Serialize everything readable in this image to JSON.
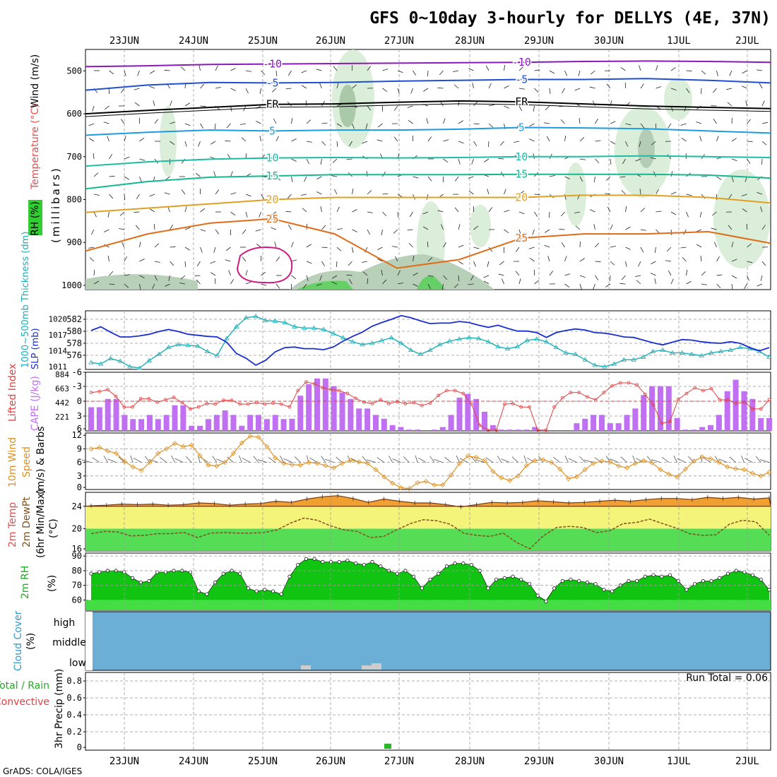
{
  "title": "GFS 0~10day 3-hourly for DELLYS (4E, 37N)",
  "footer": "GrADS: COLA/IGES",
  "dates": [
    "23JUN",
    "24JUN",
    "25JUN",
    "26JUN",
    "27JUN",
    "28JUN",
    "29JUN",
    "30JUN",
    "1JUL",
    "2JUL"
  ],
  "panels": {
    "upper": {
      "ylabel_wind": "Wind (m/s)",
      "ylabel_temp": "Temperature (°C)",
      "ylabel_rh": "RH (%)",
      "ylabel_pressure": "(millibars)",
      "ticks": [
        "500",
        "600",
        "700",
        "800",
        "900",
        "1000"
      ]
    },
    "thickness": {
      "ylabel_left": "1000~500mb Thickness (dm)",
      "ylabel_right": "SLP (mb)",
      "left_ticks": [
        "582",
        "580",
        "578",
        "576"
      ],
      "right_ticks": [
        "1020",
        "1017",
        "1014",
        "1011"
      ]
    },
    "li": {
      "ylabel_left": "Lifted Index",
      "ylabel_right": "CAPE (J/kg)",
      "left_ticks": [
        "-6",
        "-3",
        "0",
        "3",
        "6"
      ],
      "right_ticks": [
        "884",
        "663",
        "442",
        "221"
      ]
    },
    "wind10": {
      "ylabel1": "10m Wind",
      "ylabel2": "Speed",
      "ylabel3": "(m/s) & Barbs",
      "ticks": [
        "12",
        "9",
        "6",
        "3",
        "0"
      ]
    },
    "temp2m": {
      "ylabel1": "2m Temp",
      "ylabel2": "2m DewPt",
      "ylabel3": "(6hr Min/Max)",
      "ylabel4": "(°C)",
      "ticks": [
        "24",
        "20",
        "16"
      ]
    },
    "rh2m": {
      "ylabel1": "2m RH",
      "ylabel2": "(%)",
      "ticks": [
        "90",
        "80",
        "70",
        "60"
      ]
    },
    "cloud": {
      "ylabel1": "Cloud Cover",
      "ylabel2": "(%)",
      "levels": [
        "high",
        "middle",
        "low"
      ]
    },
    "precip": {
      "ylabel1": "Total / Rain",
      "ylabel2": "Convective",
      "ylabel3": "3hr Precip (mm)",
      "ticks": [
        "0.8",
        "0.6",
        "0.4",
        "0.2",
        "0"
      ],
      "run_total": "Run Total = 0.06"
    }
  },
  "chart_data": [
    {
      "type": "line",
      "name": "pressure-level cross section",
      "y_axis": "pressure (mb)",
      "ylim": [
        1000,
        450
      ],
      "series": [
        {
          "name": "-10",
          "pressure": [
            490,
            488,
            485,
            484,
            483,
            482,
            481,
            480,
            478,
            477,
            478,
            480
          ]
        },
        {
          "name": "-5",
          "pressure": [
            545,
            533,
            527,
            528,
            527,
            524,
            522,
            520,
            520,
            518,
            522,
            528
          ]
        },
        {
          "name": "FR",
          "pressure": [
            600,
            592,
            585,
            578,
            577,
            573,
            570,
            572,
            577,
            582,
            585,
            588
          ]
        },
        {
          "name": "5",
          "pressure": [
            650,
            643,
            638,
            640,
            638,
            638,
            636,
            632,
            633,
            635,
            640,
            645
          ]
        },
        {
          "name": "10",
          "pressure": [
            722,
            712,
            706,
            703,
            702,
            703,
            702,
            700,
            700,
            698,
            700,
            702
          ]
        },
        {
          "name": "15",
          "pressure": [
            775,
            758,
            748,
            745,
            742,
            742,
            742,
            741,
            741,
            741,
            743,
            750
          ]
        },
        {
          "name": "20",
          "pressure": [
            830,
            820,
            810,
            800,
            795,
            795,
            795,
            795,
            790,
            790,
            795,
            808
          ]
        },
        {
          "name": "25",
          "pressure": [
            920,
            880,
            855,
            845,
            880,
            960,
            940,
            890,
            880,
            880,
            875,
            902
          ]
        }
      ]
    },
    {
      "type": "line",
      "series": [
        {
          "name": "1000~500mb Thickness",
          "unit": "dm",
          "values": [
            576.0,
            575.8,
            576.6,
            576.2,
            575.4,
            575.2,
            576.3,
            577.2,
            578.2,
            578.6,
            578.5,
            578.4,
            577.6,
            577.0,
            579.5,
            581.2,
            582.5,
            582.7,
            582.1,
            582.0,
            581.8,
            581.2,
            581.0,
            581.0,
            580.8,
            580.2,
            579.6,
            579.0,
            578.6,
            578.8,
            579.2,
            579.6,
            578.8,
            577.8,
            577.2,
            577.8,
            578.6,
            579.1,
            579.4,
            579.6,
            579.5,
            579.0,
            578.3,
            578.0,
            578.3,
            579.2,
            579.4,
            579.0,
            578.2,
            577.4,
            577.2,
            576.4,
            575.6,
            575.4,
            575.8,
            576.4,
            576.4,
            576.8,
            577.6,
            577.8,
            577.4,
            577.4,
            577.2,
            577.0,
            577.4,
            577.6,
            577.8,
            578.2,
            578.0,
            577.6,
            576.8
          ]
        },
        {
          "name": "SLP",
          "unit": "mb",
          "values": [
            1017.8,
            1018.5,
            1017.5,
            1016.6,
            1016.6,
            1016.8,
            1017.1,
            1017.6,
            1018.0,
            1017.6,
            1017.1,
            1016.9,
            1016.7,
            1016.6,
            1015.6,
            1013.5,
            1012.6,
            1011.3,
            1012.2,
            1013.8,
            1014.6,
            1014.7,
            1014.4,
            1014.4,
            1014.2,
            1014.7,
            1015.8,
            1016.7,
            1017.5,
            1018.6,
            1019.3,
            1019.9,
            1020.6,
            1020.2,
            1019.6,
            1019.1,
            1019.2,
            1019.2,
            1019.5,
            1019.3,
            1018.8,
            1018.4,
            1018.8,
            1018.2,
            1017.7,
            1017.7,
            1017.4,
            1016.5,
            1017.4,
            1017.8,
            1018.1,
            1017.9,
            1017.4,
            1017.3,
            1017.0,
            1016.6,
            1016.5,
            1016.0,
            1015.5,
            1015.1,
            1015.6,
            1016.1,
            1016.0,
            1015.7,
            1015.5,
            1015.4,
            1015.7,
            1015.4,
            1014.6,
            1014.0,
            1014.6
          ]
        }
      ]
    },
    {
      "type": "bar",
      "series": [
        {
          "name": "CAPE",
          "unit": "J/kg",
          "values": [
            370,
            370,
            500,
            500,
            250,
            185,
            185,
            250,
            185,
            250,
            400,
            400,
            80,
            80,
            185,
            250,
            320,
            250,
            80,
            250,
            250,
            185,
            250,
            185,
            190,
            550,
            730,
            820,
            820,
            700,
            600,
            500,
            350,
            350,
            250,
            190,
            90,
            60,
            20,
            20,
            0,
            20,
            60,
            250,
            520,
            580,
            500,
            300,
            90,
            20,
            20,
            20,
            20,
            60,
            20,
            0,
            0,
            0,
            120,
            190,
            250,
            250,
            120,
            120,
            250,
            350,
            560,
            700,
            700,
            700,
            200,
            20,
            20,
            60,
            90,
            250,
            620,
            800,
            620,
            500,
            200,
            200
          ]
        },
        {
          "name": "Lifted Index",
          "unit": "",
          "values": [
            -1.8,
            -2.0,
            -2.4,
            -1.0,
            1.2,
            1.2,
            -0.5,
            -0.5,
            0.2,
            -0.3,
            -0.8,
            0.3,
            1.6,
            1.2,
            0.5,
            0.6,
            -0.2,
            -0.2,
            0.6,
            0.6,
            0.3,
            0.6,
            0.4,
            0.6,
            1.2,
            -2.2,
            -4.0,
            -3.6,
            -2.8,
            -2.4,
            -2.2,
            -1.6,
            -0.6,
            0.2,
            0.5,
            -0.3,
            0.5,
            0.1,
            0.5,
            0.3,
            0.9,
            0.4,
            -1.2,
            -2.2,
            -2.2,
            -1.6,
            0.6,
            5.0,
            6.0,
            6.0,
            0.6,
            0.5,
            1.2,
            1.2,
            6.0,
            6.0,
            1.2,
            -0.7,
            -1.8,
            -1.8,
            -0.9,
            -0.3,
            -1.8,
            -3.2,
            -3.8,
            -3.8,
            -3.4,
            -1.4,
            0.8,
            4.6,
            4.2,
            -0.4,
            -1.6,
            -2.8,
            -2.2,
            -2.6,
            -0.3,
            -0.3,
            0.5,
            0.2,
            1.6,
            1.6,
            -0.3
          ]
        }
      ]
    },
    {
      "type": "line",
      "series": [
        {
          "name": "10m Wind Speed",
          "unit": "m/s",
          "values": [
            9.0,
            9.3,
            8.5,
            8.0,
            6.2,
            5.0,
            4.2,
            6.0,
            8.0,
            9.0,
            10.2,
            9.5,
            9.8,
            7.5,
            5.4,
            5.2,
            6.0,
            8.0,
            10.3,
            11.8,
            11.6,
            9.5,
            7.0,
            5.8,
            5.5,
            5.4,
            6.0,
            5.8,
            5.3,
            4.8,
            5.8,
            6.5,
            6.1,
            5.8,
            4.4,
            2.8,
            1.4,
            0.4,
            0.2,
            1.5,
            1.8,
            1.0,
            1.0,
            3.2,
            5.8,
            7.4,
            7.1,
            6.4,
            4.0,
            2.6,
            2.0,
            3.0,
            5.3,
            6.4,
            6.6,
            6.0,
            4.5,
            2.4,
            2.8,
            4.4,
            5.8,
            6.3,
            6.1,
            5.2,
            4.8,
            5.8,
            6.4,
            5.9,
            4.4,
            3.4,
            2.8,
            4.5,
            6.3,
            7.2,
            6.8,
            6.0,
            5.0,
            4.6,
            4.4,
            3.6,
            3.0,
            3.8
          ]
        }
      ]
    },
    {
      "type": "area",
      "series": [
        {
          "name": "2m Temp",
          "unit": "°C",
          "values": [
            24.1,
            24.2,
            24.4,
            24.3,
            24.4,
            24.2,
            24.3,
            24.6,
            24.5,
            24.2,
            24.4,
            24.5,
            24.9,
            24.7,
            25.3,
            25.7,
            25.9,
            25.4,
            24.7,
            25.3,
            24.9,
            24.6,
            24.6,
            24.3,
            23.9,
            24.3,
            24.7,
            24.6,
            24.7,
            25.0,
            24.8,
            24.6,
            24.7,
            24.9,
            25.1,
            24.9,
            25.2,
            25.4,
            25.4,
            25.2,
            25.6,
            25.4,
            25.6,
            25.3,
            25.5
          ]
        },
        {
          "name": "2m DewPt",
          "unit": "°C",
          "values": [
            19.1,
            19.5,
            19.4,
            18.7,
            18.8,
            19.1,
            19.1,
            19.3,
            18.4,
            19.2,
            19.3,
            19.2,
            19.2,
            19.3,
            19.8,
            21.0,
            21.9,
            21.5,
            20.5,
            19.8,
            19.5,
            18.4,
            18.6,
            19.8,
            20.9,
            21.6,
            21.4,
            20.8,
            19.2,
            18.8,
            18.6,
            19.2,
            17.5,
            16.4,
            18.7,
            20.2,
            20.4,
            20.2,
            19.3,
            19.6,
            20.9,
            21.1,
            21.7,
            20.9,
            20.1,
            19.1,
            18.8,
            18.9,
            20.8,
            21.5,
            21.2,
            18.8
          ]
        }
      ]
    },
    {
      "type": "area",
      "series": [
        {
          "name": "2m RH",
          "unit": "%",
          "values": [
            78,
            79,
            80,
            80,
            79,
            75,
            72,
            73,
            79,
            79,
            80,
            80,
            79,
            66,
            64,
            72,
            78,
            80,
            78,
            68,
            66,
            67,
            66,
            64,
            76,
            84,
            88,
            88,
            86,
            86,
            86,
            87,
            85,
            84,
            86,
            83,
            80,
            78,
            80,
            76,
            68,
            74,
            78,
            83,
            85,
            85,
            84,
            80,
            68,
            74,
            75,
            76,
            74,
            71,
            63,
            59,
            68,
            73,
            74,
            73,
            72,
            71,
            67,
            66,
            70,
            73,
            73,
            76,
            77,
            76,
            77,
            73,
            67,
            71,
            73,
            73,
            75,
            78,
            80,
            79,
            77,
            74,
            67
          ]
        }
      ]
    },
    {
      "type": "heatmap",
      "levels": [
        "high",
        "middle",
        "low"
      ],
      "coverage_percent": {
        "high": 0,
        "middle": 0,
        "low": 0
      },
      "note_values": [
        0,
        0,
        0
      ]
    },
    {
      "type": "bar",
      "series": [
        {
          "name": "3hr Precip",
          "unit": "mm",
          "values": [
            0,
            0,
            0,
            0,
            0,
            0,
            0,
            0,
            0,
            0,
            0,
            0,
            0,
            0,
            0,
            0,
            0,
            0,
            0,
            0,
            0,
            0,
            0,
            0,
            0,
            0,
            0,
            0,
            0,
            0,
            0,
            0,
            0,
            0,
            0,
            0.06,
            0,
            0,
            0,
            0,
            0,
            0,
            0,
            0,
            0,
            0,
            0,
            0,
            0,
            0,
            0,
            0,
            0,
            0,
            0,
            0,
            0,
            0,
            0,
            0,
            0,
            0,
            0,
            0,
            0,
            0,
            0,
            0,
            0,
            0,
            0,
            0,
            0,
            0,
            0,
            0,
            0,
            0,
            0,
            0,
            0
          ]
        }
      ],
      "ylim": [
        0,
        0.9
      ]
    }
  ],
  "colors": {
    "minus10": "#8a1ab8",
    "minus5": "#1f4fd0",
    "fr": "#000000",
    "plus5": "#1e9be0",
    "plus10": "#1dbda5",
    "plus15": "#13b890",
    "plus20": "#e0a020",
    "plus25": "#e06c18",
    "plus30": "#d01a80",
    "thickness": "#1ab0b8",
    "slp": "#1a2ed0",
    "cape": "#c070f0",
    "li": "#e04040",
    "wind": "#e09020",
    "temp": "#f0a030",
    "dewpt": "#805020",
    "rh_dark": "#00b000",
    "cloud_bg": "#6baed6",
    "precip": "#22bb22"
  }
}
